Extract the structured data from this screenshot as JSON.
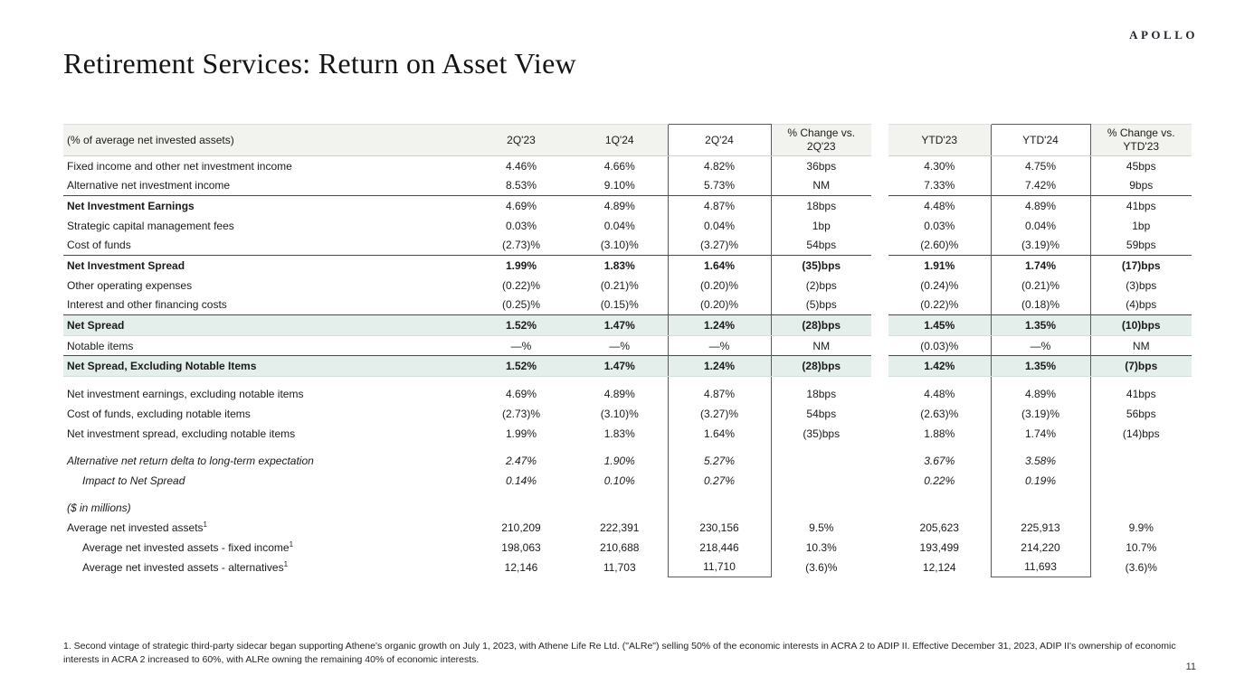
{
  "brand": {
    "logo_text": "APOLLO"
  },
  "page": {
    "title": "Retirement Services: Return on Asset View",
    "page_number": "11",
    "footnote": "1. Second vintage of strategic third-party sidecar began supporting Athene's organic growth on July 1, 2023, with Athene Life Re Ltd. (\"ALRe\") selling 50% of the economic interests in ACRA 2 to ADIP II. Effective December 31, 2023, ADIP II's ownership of economic interests in ACRA 2 increased to 60%, with ALRe owning the remaining 40% of economic interests."
  },
  "colors": {
    "highlight": "#e4efeb",
    "header_bg": "#f2f2ef",
    "rule_dark": "#4a4a4a",
    "box_border": "#5a5a5a"
  },
  "table": {
    "label_header": "(% of average net invested assets)",
    "columns": [
      "2Q'23",
      "1Q'24",
      "2Q'24",
      "% Change vs. 2Q'23",
      "YTD'23",
      "YTD'24",
      "% Change vs. YTD'23"
    ],
    "rows": [
      {
        "label": "Fixed income and other net investment income",
        "values": [
          "4.46%",
          "4.66%",
          "4.82%",
          "36bps",
          "4.30%",
          "4.75%",
          "45bps"
        ],
        "classes": ""
      },
      {
        "label": "Alternative net investment income",
        "values": [
          "8.53%",
          "9.10%",
          "5.73%",
          "NM",
          "7.33%",
          "7.42%",
          "9bps"
        ],
        "classes": ""
      },
      {
        "label": "Net Investment Earnings",
        "values": [
          "4.69%",
          "4.89%",
          "4.87%",
          "18bps",
          "4.48%",
          "4.89%",
          "41bps"
        ],
        "classes": "bold-label top-dark"
      },
      {
        "label": "Strategic capital management fees",
        "values": [
          "0.03%",
          "0.04%",
          "0.04%",
          "1bp",
          "0.03%",
          "0.04%",
          "1bp"
        ],
        "classes": ""
      },
      {
        "label": "Cost of funds",
        "values": [
          "(2.73)%",
          "(3.10)%",
          "(3.27)%",
          "54bps",
          "(2.60)%",
          "(3.19)%",
          "59bps"
        ],
        "classes": ""
      },
      {
        "label": "Net Investment Spread",
        "values": [
          "1.99%",
          "1.83%",
          "1.64%",
          "(35)bps",
          "1.91%",
          "1.74%",
          "(17)bps"
        ],
        "classes": "bold-all top-dark"
      },
      {
        "label": "Other operating expenses",
        "values": [
          "(0.22)%",
          "(0.21)%",
          "(0.20)%",
          "(2)bps",
          "(0.24)%",
          "(0.21)%",
          "(3)bps"
        ],
        "classes": ""
      },
      {
        "label": "Interest and other financing costs",
        "values": [
          "(0.25)%",
          "(0.15)%",
          "(0.20)%",
          "(5)bps",
          "(0.22)%",
          "(0.18)%",
          "(4)bps"
        ],
        "classes": ""
      },
      {
        "label": "Net Spread",
        "values": [
          "1.52%",
          "1.47%",
          "1.24%",
          "(28)bps",
          "1.45%",
          "1.35%",
          "(10)bps"
        ],
        "classes": "bold-all highlight top-dark"
      },
      {
        "label": "Notable items",
        "values": [
          "—%",
          "—%",
          "—%",
          "NM",
          "(0.03)%",
          "—%",
          "NM"
        ],
        "classes": ""
      },
      {
        "label": "Net Spread, Excluding Notable Items",
        "values": [
          "1.52%",
          "1.47%",
          "1.24%",
          "(28)bps",
          "1.42%",
          "1.35%",
          "(7)bps"
        ],
        "classes": "bold-all highlight top-dark"
      },
      {
        "label": "Net investment earnings, excluding notable items",
        "values": [
          "4.69%",
          "4.89%",
          "4.87%",
          "18bps",
          "4.48%",
          "4.89%",
          "41bps"
        ],
        "classes": "",
        "gap_before": true
      },
      {
        "label": "Cost of funds, excluding notable items",
        "values": [
          "(2.73)%",
          "(3.10)%",
          "(3.27)%",
          "54bps",
          "(2.63)%",
          "(3.19)%",
          "56bps"
        ],
        "classes": ""
      },
      {
        "label": "Net investment spread, excluding notable items",
        "values": [
          "1.99%",
          "1.83%",
          "1.64%",
          "(35)bps",
          "1.88%",
          "1.74%",
          "(14)bps"
        ],
        "classes": ""
      },
      {
        "label": "Alternative net return delta to long-term expectation",
        "values": [
          "2.47%",
          "1.90%",
          "5.27%",
          "",
          "3.67%",
          "3.58%",
          ""
        ],
        "classes": "italic",
        "gap_before": true
      },
      {
        "label": "Impact to Net Spread",
        "values": [
          "0.14%",
          "0.10%",
          "0.27%",
          "",
          "0.22%",
          "0.19%",
          ""
        ],
        "classes": "italic indent"
      },
      {
        "label": "($ in millions)",
        "values": [
          "",
          "",
          "",
          "",
          "",
          "",
          ""
        ],
        "classes": "italic",
        "gap_before": true
      },
      {
        "label": "Average net invested assets",
        "sup": "1",
        "values": [
          "210,209",
          "222,391",
          "230,156",
          "9.5%",
          "205,623",
          "225,913",
          "9.9%"
        ],
        "classes": ""
      },
      {
        "label": "Average net invested assets - fixed income",
        "sup": "1",
        "values": [
          "198,063",
          "210,688",
          "218,446",
          "10.3%",
          "193,499",
          "214,220",
          "10.7%"
        ],
        "classes": "indent"
      },
      {
        "label": "Average net invested assets - alternatives",
        "sup": "1",
        "values": [
          "12,146",
          "11,703",
          "11,710",
          "(3.6)%",
          "12,124",
          "11,693",
          "(3.6)%"
        ],
        "classes": "indent"
      }
    ]
  }
}
